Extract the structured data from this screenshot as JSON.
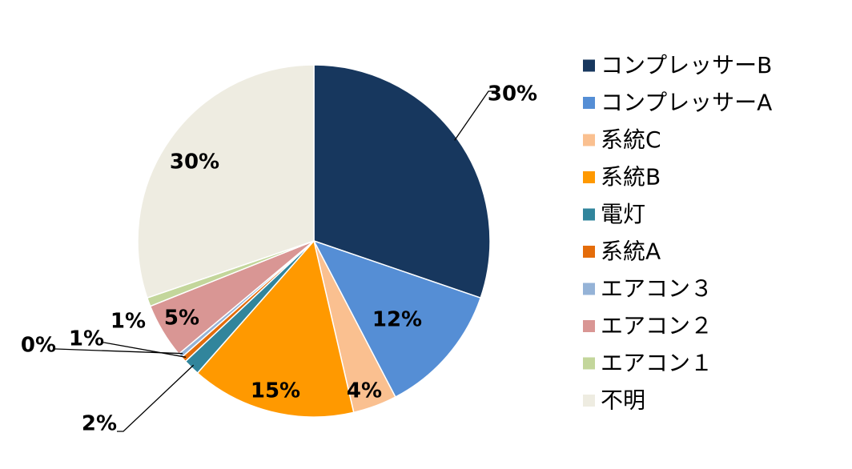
{
  "chart_data": {
    "type": "pie",
    "title": "",
    "start": "top, clockwise",
    "slices": [
      {
        "name": "コンプレッサーB",
        "value": 30,
        "label": "30%",
        "color": "#17375E"
      },
      {
        "name": "コンプレッサーA",
        "value": 12,
        "label": "12%",
        "color": "#558ED5"
      },
      {
        "name": "系統C",
        "value": 4,
        "label": "4%",
        "color": "#FAC090"
      },
      {
        "name": "系統B",
        "value": 15,
        "label": "15%",
        "color": "#FF9900"
      },
      {
        "name": "電灯",
        "value": 1.5,
        "label": "2%",
        "color": "#31859C"
      },
      {
        "name": "系統A",
        "value": 0.5,
        "label": "1%",
        "color": "#E46C0A"
      },
      {
        "name": "エアコン３",
        "value": 0.4,
        "label": "0%",
        "color": "#95B3D7"
      },
      {
        "name": "エアコン２",
        "value": 5,
        "label": "5%",
        "color": "#D99694"
      },
      {
        "name": "エアコン１",
        "value": 0.8,
        "label": "1%",
        "color": "#C3D69B"
      },
      {
        "name": "不明",
        "value": 30,
        "label": "30%",
        "color": "#EEECE1"
      }
    ],
    "legend": "right"
  }
}
